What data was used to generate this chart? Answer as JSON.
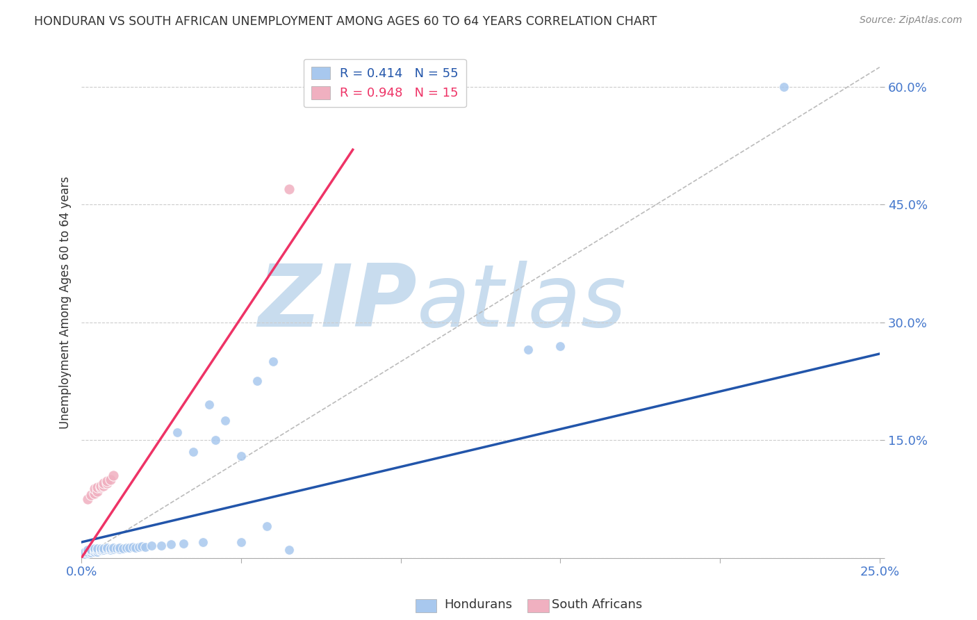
{
  "title": "HONDURAN VS SOUTH AFRICAN UNEMPLOYMENT AMONG AGES 60 TO 64 YEARS CORRELATION CHART",
  "source": "Source: ZipAtlas.com",
  "ylabel": "Unemployment Among Ages 60 to 64 years",
  "xlim": [
    0.0,
    0.25
  ],
  "ylim": [
    0.0,
    0.65
  ],
  "xticks": [
    0.0,
    0.05,
    0.1,
    0.15,
    0.2,
    0.25
  ],
  "xtick_labels": [
    "0.0%",
    "",
    "",
    "",
    "",
    "25.0%"
  ],
  "yticks": [
    0.0,
    0.15,
    0.3,
    0.45,
    0.6
  ],
  "ytick_labels": [
    "",
    "15.0%",
    "30.0%",
    "45.0%",
    "60.0%"
  ],
  "legend_label_h": "R = 0.414   N = 55",
  "legend_label_sa": "R = 0.948   N = 15",
  "watermark_zip": "ZIP",
  "watermark_atlas": "atlas",
  "watermark_color": "#C8DCEE",
  "background_color": "#FFFFFF",
  "grid_color": "#CCCCCC",
  "title_color": "#333333",
  "axis_color": "#4477CC",
  "honduran_color": "#A8C8EE",
  "sa_color": "#F0B0C0",
  "honduran_line_color": "#2255AA",
  "sa_line_color": "#EE3366",
  "diag_line_color": "#BBBBBB",
  "honduran_points": [
    [
      0.001,
      0.005
    ],
    [
      0.001,
      0.008
    ],
    [
      0.002,
      0.006
    ],
    [
      0.002,
      0.008
    ],
    [
      0.002,
      0.01
    ],
    [
      0.003,
      0.007
    ],
    [
      0.003,
      0.009
    ],
    [
      0.003,
      0.01
    ],
    [
      0.004,
      0.008
    ],
    [
      0.004,
      0.01
    ],
    [
      0.004,
      0.012
    ],
    [
      0.005,
      0.008
    ],
    [
      0.005,
      0.01
    ],
    [
      0.005,
      0.012
    ],
    [
      0.006,
      0.009
    ],
    [
      0.006,
      0.01
    ],
    [
      0.006,
      0.012
    ],
    [
      0.007,
      0.01
    ],
    [
      0.007,
      0.012
    ],
    [
      0.008,
      0.011
    ],
    [
      0.008,
      0.013
    ],
    [
      0.009,
      0.01
    ],
    [
      0.009,
      0.012
    ],
    [
      0.01,
      0.011
    ],
    [
      0.01,
      0.013
    ],
    [
      0.011,
      0.012
    ],
    [
      0.012,
      0.011
    ],
    [
      0.012,
      0.013
    ],
    [
      0.013,
      0.012
    ],
    [
      0.014,
      0.013
    ],
    [
      0.015,
      0.013
    ],
    [
      0.016,
      0.014
    ],
    [
      0.017,
      0.013
    ],
    [
      0.018,
      0.014
    ],
    [
      0.019,
      0.015
    ],
    [
      0.02,
      0.014
    ],
    [
      0.022,
      0.016
    ],
    [
      0.025,
      0.016
    ],
    [
      0.028,
      0.017
    ],
    [
      0.03,
      0.16
    ],
    [
      0.032,
      0.018
    ],
    [
      0.035,
      0.135
    ],
    [
      0.038,
      0.02
    ],
    [
      0.04,
      0.195
    ],
    [
      0.042,
      0.15
    ],
    [
      0.045,
      0.175
    ],
    [
      0.05,
      0.13
    ],
    [
      0.05,
      0.02
    ],
    [
      0.055,
      0.225
    ],
    [
      0.058,
      0.04
    ],
    [
      0.06,
      0.25
    ],
    [
      0.065,
      0.01
    ],
    [
      0.14,
      0.265
    ],
    [
      0.15,
      0.27
    ],
    [
      0.22,
      0.6
    ]
  ],
  "sa_points": [
    [
      0.002,
      0.075
    ],
    [
      0.003,
      0.08
    ],
    [
      0.004,
      0.082
    ],
    [
      0.004,
      0.088
    ],
    [
      0.005,
      0.085
    ],
    [
      0.005,
      0.09
    ],
    [
      0.006,
      0.09
    ],
    [
      0.006,
      0.092
    ],
    [
      0.007,
      0.092
    ],
    [
      0.007,
      0.095
    ],
    [
      0.008,
      0.095
    ],
    [
      0.008,
      0.098
    ],
    [
      0.009,
      0.1
    ],
    [
      0.01,
      0.105
    ],
    [
      0.065,
      0.47
    ]
  ],
  "honduran_line_x": [
    0.0,
    0.25
  ],
  "honduran_line_y": [
    0.02,
    0.26
  ],
  "sa_line_x": [
    0.0,
    0.085
  ],
  "sa_line_y": [
    0.0,
    0.52
  ],
  "diag_line_x": [
    0.0,
    0.25
  ],
  "diag_line_y": [
    0.0,
    0.625
  ]
}
